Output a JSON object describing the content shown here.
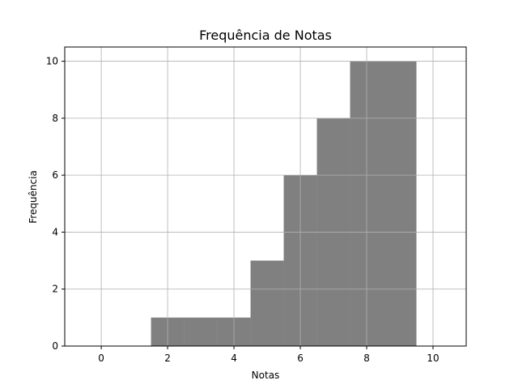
{
  "chart_data": {
    "type": "bar",
    "title": "Frequência de Notas",
    "xlabel": "Notas",
    "ylabel": "Frequência",
    "xlim": [
      -1.1,
      11.0
    ],
    "ylim": [
      0,
      10.5
    ],
    "xticks": [
      0,
      2,
      4,
      6,
      8,
      10
    ],
    "yticks": [
      0,
      2,
      4,
      6,
      8,
      10
    ],
    "grid": true,
    "bar_color": "#808080",
    "grid_color": "#b0b0b0",
    "bars": [
      {
        "x0": 1.5,
        "x1": 2.5,
        "value": 1
      },
      {
        "x0": 2.5,
        "x1": 3.5,
        "value": 1
      },
      {
        "x0": 3.5,
        "x1": 4.5,
        "value": 1
      },
      {
        "x0": 4.5,
        "x1": 5.5,
        "value": 3
      },
      {
        "x0": 5.5,
        "x1": 6.5,
        "value": 6
      },
      {
        "x0": 6.5,
        "x1": 7.5,
        "value": 8
      },
      {
        "x0": 7.5,
        "x1": 8.5,
        "value": 10
      },
      {
        "x0": 8.5,
        "x1": 9.5,
        "value": 10
      }
    ]
  }
}
